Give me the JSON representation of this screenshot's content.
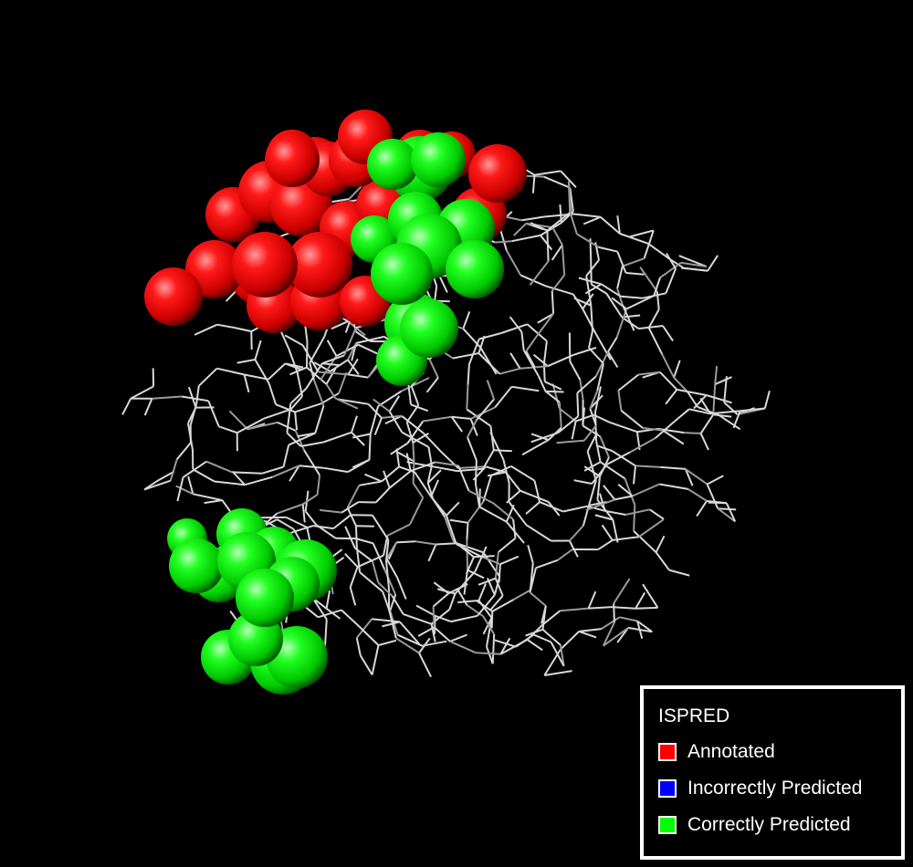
{
  "scene": {
    "background_color": "#000000",
    "wire_color": "#d8d8d8",
    "atom_groups": [
      {
        "name": "annotated",
        "color": "#ff0000"
      },
      {
        "name": "correctly-predicted",
        "color": "#00ff00"
      }
    ]
  },
  "legend": {
    "title": "ISPRED",
    "items": [
      {
        "label": "Annotated",
        "color": "#ff0000"
      },
      {
        "label": "Incorrectly Predicted",
        "color": "#0000ff"
      },
      {
        "label": "Correctly Predicted",
        "color": "#00ff00"
      }
    ]
  }
}
